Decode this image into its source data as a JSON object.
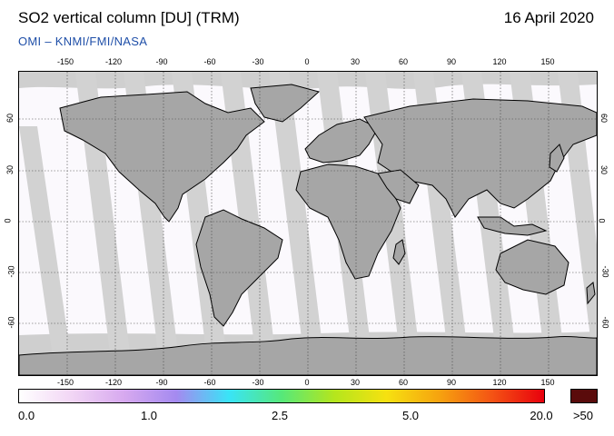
{
  "header": {
    "title": "SO2 vertical column [DU] (TRM)",
    "date": "16 April 2020",
    "credit": "OMI  –  KNMI/FMI/NASA"
  },
  "map": {
    "lon_ticks_top": [
      "-150",
      "-120",
      "-90",
      "-60",
      "-30",
      "0",
      "30",
      "60",
      "90",
      "120",
      "150"
    ],
    "lon_ticks_bottom": [
      "-150",
      "-120",
      "-90",
      "-60",
      "-30",
      "0",
      "30",
      "60",
      "90",
      "120",
      "150"
    ],
    "lat_ticks": [
      "60",
      "30",
      "0",
      "-30",
      "-60"
    ],
    "colors": {
      "land": "#a6a6a6",
      "swath_gap": "#cfcfcf",
      "background": "#fbf9fd",
      "coast": "#000000"
    }
  },
  "colorbar": {
    "labels": [
      "0.0",
      "1.0",
      "2.5",
      "5.0",
      "20.0"
    ],
    "overflow_label": ">50",
    "overflow_color": "#5a0b0b",
    "gradient": [
      "#ffffff",
      "#f2d6f5",
      "#d7a9ef",
      "#a48af0",
      "#39e4f7",
      "#56e87a",
      "#b4e61d",
      "#f6e110",
      "#f6a30f",
      "#f45414",
      "#e8000d"
    ]
  }
}
